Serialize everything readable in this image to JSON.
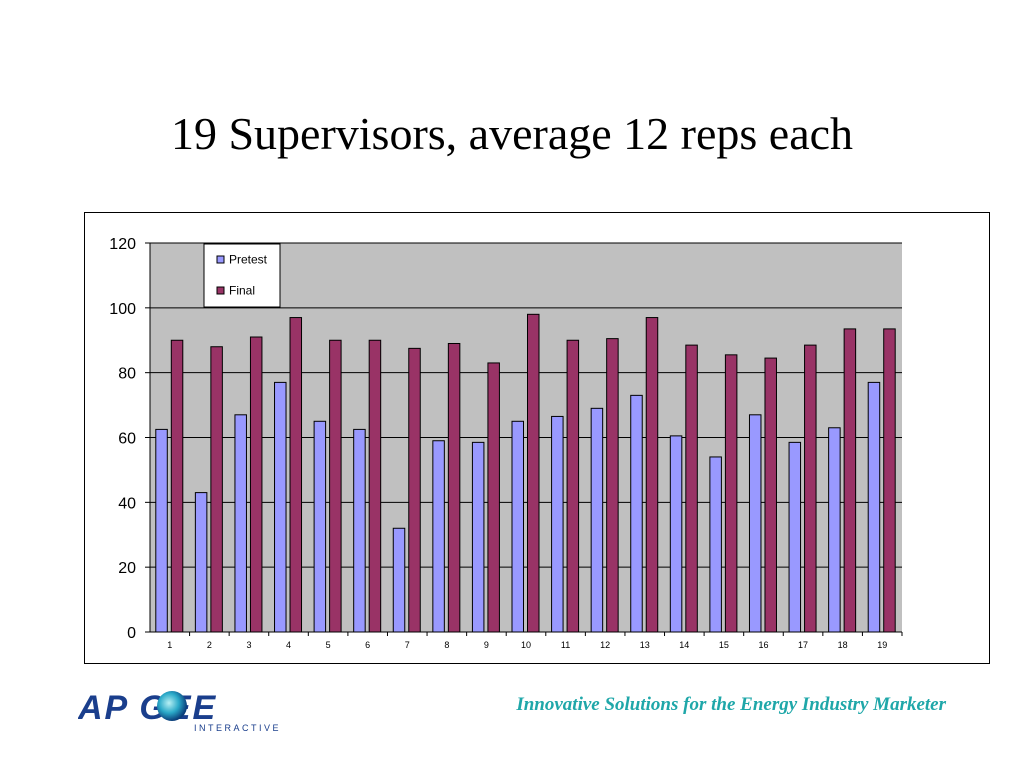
{
  "slide": {
    "title": "19 Supervisors, average 12 reps each",
    "tagline": "Innovative Solutions for the Energy Industry Marketer"
  },
  "logo": {
    "text_main": "AP  GEE",
    "text_sub": "INTERACTIVE",
    "color": "#1A3E8C"
  },
  "chart_data": {
    "type": "bar",
    "categories": [
      "1",
      "2",
      "3",
      "4",
      "5",
      "6",
      "7",
      "8",
      "9",
      "10",
      "11",
      "12",
      "13",
      "14",
      "15",
      "16",
      "17",
      "18",
      "19"
    ],
    "series": [
      {
        "name": "Pretest",
        "color": "#9999FF",
        "values": [
          62.5,
          43,
          67,
          77,
          65,
          62.5,
          32,
          59,
          58.5,
          65,
          66.5,
          69,
          73,
          60.5,
          54,
          67,
          58.5,
          63,
          77
        ]
      },
      {
        "name": "Final",
        "color": "#993366",
        "values": [
          90,
          88,
          91,
          97,
          90,
          90,
          87.5,
          89,
          83,
          98,
          90,
          90.5,
          97,
          88.5,
          85.5,
          84.5,
          88.5,
          93.5,
          93.5
        ]
      }
    ],
    "yticks": [
      0,
      20,
      40,
      60,
      80,
      100,
      120
    ],
    "ylim": [
      0,
      120
    ],
    "grid": true,
    "plot_background": "#C0C0C0",
    "legend_position": "top-left"
  }
}
